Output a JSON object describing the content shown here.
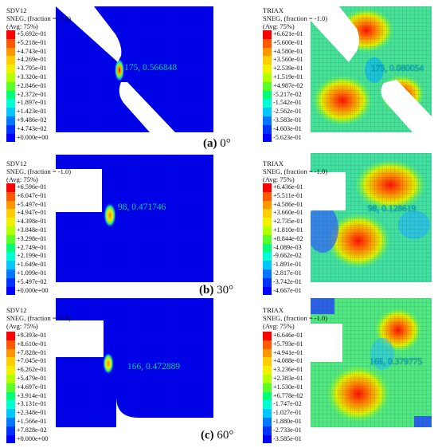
{
  "legend_colors": [
    "#ff0000",
    "#ff5a00",
    "#ff9600",
    "#ffcd00",
    "#f0f000",
    "#b4ff00",
    "#5aff2a",
    "#00ff78",
    "#00ffd2",
    "#00c8ff",
    "#0078ff",
    "#0032ff",
    "#0000ff"
  ],
  "panels": [
    {
      "caption_label": "(a)",
      "caption_angle": " 0°",
      "left": {
        "title": "SDV12",
        "subtitle": "SNEG, (fraction = -1.0)",
        "avg": "(Avg: 75%)",
        "legend": [
          "+5.692e-01",
          "+5.218e-01",
          "+4.743e-01",
          "+4.269e-01",
          "+3.795e-01",
          "+3.320e-01",
          "+2.846e-01",
          "+2.372e-01",
          "+1.897e-01",
          "+1.423e-01",
          "+9.486e-02",
          "+4.743e-02",
          "+0.000e+00"
        ],
        "probe": "175, 0.566848"
      },
      "right": {
        "title": "TRIAX",
        "subtitle": "SNEG, (fraction = -1.0)",
        "avg": "(Avg: 75%)",
        "legend": [
          "+6.621e-01",
          "+5.600e-01",
          "+4.580e-01",
          "+3.560e-01",
          "+2.539e-01",
          "+1.519e-01",
          "+4.987e-02",
          "-5.217e-02",
          "-1.542e-01",
          "-2.562e-01",
          "-3.583e-01",
          "-4.603e-01",
          "-5.623e-01"
        ],
        "probe": "175, 0.080054"
      }
    },
    {
      "caption_label": "(b)",
      "caption_angle": " 30°",
      "left": {
        "title": "SDV12",
        "subtitle": "SNEG, (fraction = -1.0)",
        "avg": "(Avg: 75%)",
        "legend": [
          "+6.596e-01",
          "+6.047e-01",
          "+5.497e-01",
          "+4.947e-01",
          "+4.398e-01",
          "+3.848e-01",
          "+3.298e-01",
          "+2.749e-01",
          "+2.199e-01",
          "+1.649e-01",
          "+1.099e-01",
          "+5.497e-02",
          "+0.000e+00"
        ],
        "probe": "98, 0.471746"
      },
      "right": {
        "title": "TRIAX",
        "subtitle": "SNEG, (fraction = -1.0)",
        "avg": "(Avg: 75%)",
        "legend": [
          "+6.436e-01",
          "+5.511e-01",
          "+4.586e-01",
          "+3.660e-01",
          "+2.735e-01",
          "+1.810e-01",
          "+8.844e-02",
          "-4.089e-03",
          "-9.662e-02",
          "-1.891e-01",
          "-2.817e-01",
          "-3.742e-01",
          "-4.667e-01"
        ],
        "probe": "98, 0.128619"
      }
    },
    {
      "caption_label": "(c)",
      "caption_angle": " 60°",
      "left": {
        "title": "SDV12",
        "subtitle": "SNEG, (fraction = -1.0)",
        "avg": "(Avg: 75%)",
        "legend": [
          "+9.393e-01",
          "+8.610e-01",
          "+7.828e-01",
          "+7.045e-01",
          "+6.262e-01",
          "+5.479e-01",
          "+4.697e-01",
          "+3.914e-01",
          "+3.131e-01",
          "+2.348e-01",
          "+1.566e-01",
          "+7.828e-02",
          "+0.000e+00"
        ],
        "probe": "166, 0.472889"
      },
      "right": {
        "title": "TRIAX",
        "subtitle": "SNEG, (fraction = -1.0)",
        "avg": "(Avg: 75%)",
        "legend": [
          "+6.646e-01",
          "+5.793e-01",
          "+4.941e-01",
          "+4.088e-01",
          "+3.236e-01",
          "+2.383e-01",
          "+1.530e-01",
          "+6.778e-02",
          "-1.747e-02",
          "-1.027e-01",
          "-1.880e-01",
          "-2.733e-01",
          "-3.585e-01"
        ],
        "probe": "166, 0.379775"
      }
    }
  ]
}
